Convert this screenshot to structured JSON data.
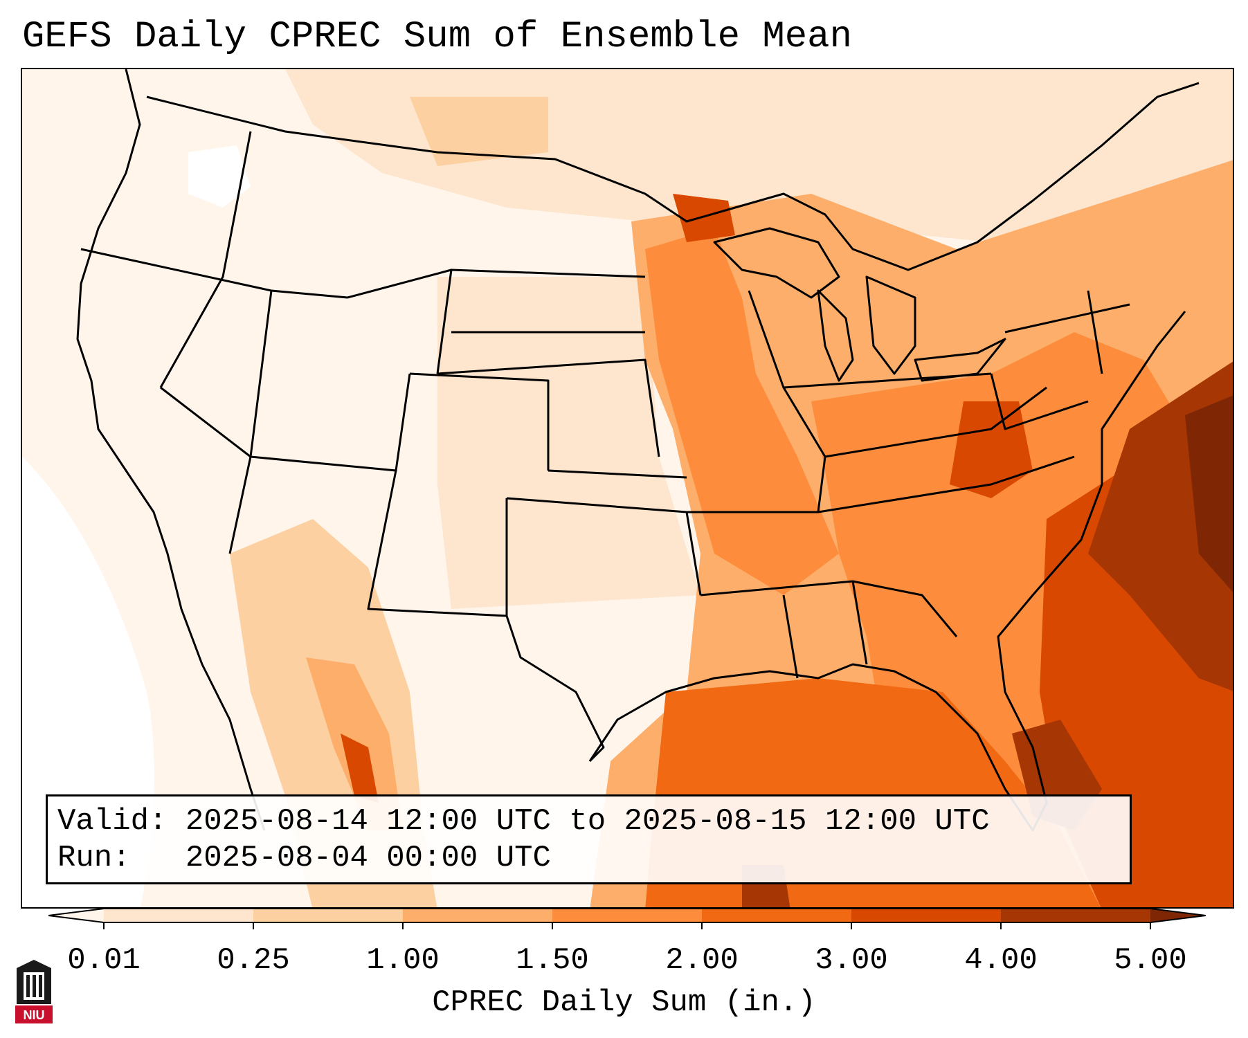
{
  "title": "GEFS Daily CPREC Sum of Ensemble Mean",
  "valid_text": "Valid: 2025-08-14 12:00 UTC to 2025-08-15 12:00 UTC",
  "run_text": "Run:   2025-08-04 00:00 UTC",
  "colorbar": {
    "label": "CPREC Daily Sum (in.)",
    "ticks": [
      "0.01",
      "0.25",
      "1.00",
      "1.50",
      "2.00",
      "3.00",
      "4.00",
      "5.00"
    ],
    "colors": [
      "#fff5eb",
      "#fee6ce",
      "#fdd0a2",
      "#fdae6b",
      "#fd8d3c",
      "#f16913",
      "#d94801",
      "#a63603",
      "#7f2704"
    ],
    "extend": "both"
  },
  "logo": {
    "text": "NIU"
  },
  "colors": {
    "land_outline": "#000000",
    "background": "#ffffff"
  }
}
